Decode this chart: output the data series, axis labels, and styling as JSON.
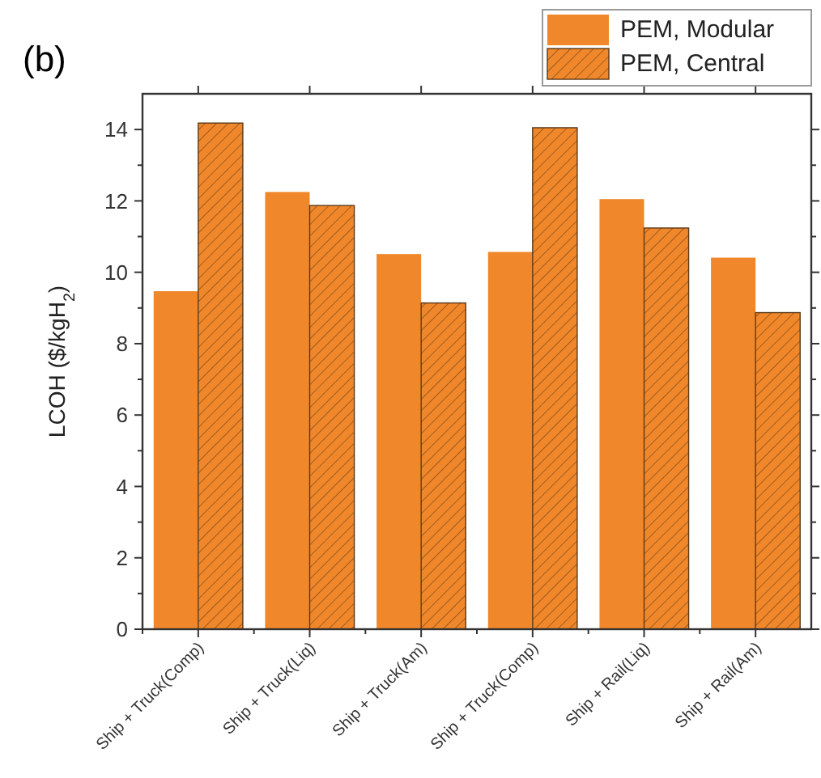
{
  "chart_data": {
    "type": "bar",
    "title": "(b)",
    "ylabel": "LCOH ($/kgH$_{2}$)",
    "categories": [
      "Ship + Truck(Comp)",
      "Ship + Truck(Liq)",
      "Ship + Truck(Am)",
      "Ship + Truck(Comp)",
      "Ship + Rail(Liq)",
      "Ship + Rail(Am)"
    ],
    "series": [
      {
        "name": "PEM, Modular",
        "color": "#f0882b",
        "values": [
          9.47,
          12.25,
          10.51,
          10.57,
          12.05,
          10.41
        ]
      },
      {
        "name": "PEM, Central",
        "color": "#f0882b",
        "values": [
          14.18,
          11.87,
          9.14,
          14.05,
          11.24,
          8.87
        ]
      }
    ],
    "ylim": [
      0,
      15
    ],
    "yticks": [
      0,
      2,
      4,
      6,
      8,
      10,
      12,
      14
    ],
    "grid": false,
    "legend": "top right"
  }
}
